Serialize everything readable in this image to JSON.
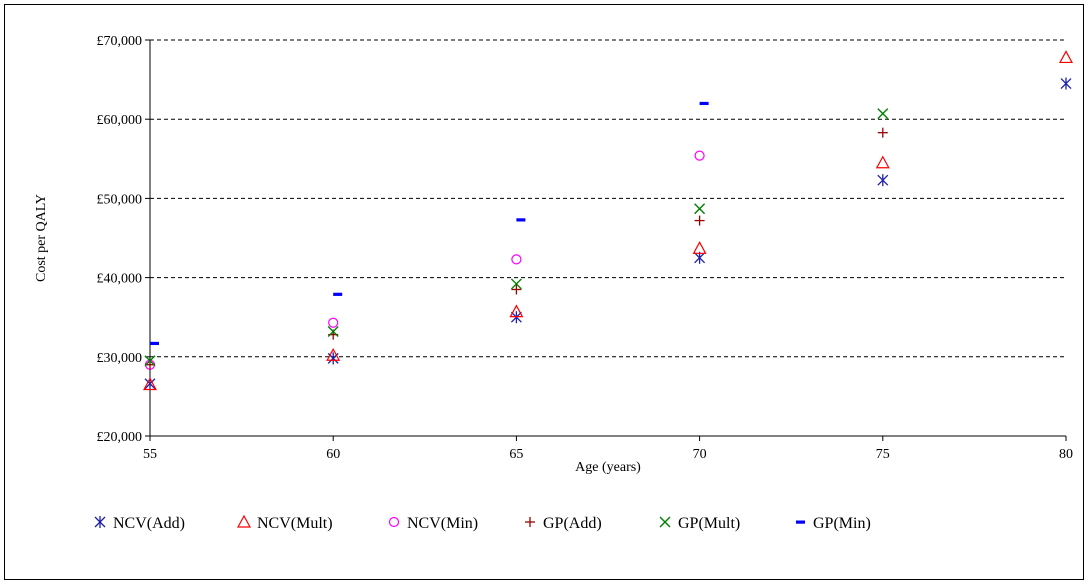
{
  "chart_data": {
    "type": "scatter",
    "title": "",
    "xlabel": "Age (years)",
    "ylabel": "Cost per QALY",
    "xlim": [
      55,
      80
    ],
    "ylim": [
      20000,
      70000
    ],
    "x_ticks": [
      "55",
      "60",
      "65",
      "70",
      "75",
      "80"
    ],
    "y_ticks": [
      "£20,000",
      "£30,000",
      "£40,000",
      "£50,000",
      "£60,000",
      "£70,000"
    ],
    "grid": "horizontal dashed",
    "legend_position": "bottom",
    "series": [
      {
        "name": "NCV(Add)",
        "marker": "asterisk",
        "color": "#1f1fa8",
        "points": [
          [
            55,
            26600
          ],
          [
            60,
            29800
          ],
          [
            65,
            35000
          ],
          [
            70,
            42500
          ],
          [
            75,
            52300
          ],
          [
            80,
            64500
          ]
        ]
      },
      {
        "name": "NCV(Mult)",
        "marker": "triangle",
        "color": "#ff0000",
        "points": [
          [
            55,
            26500
          ],
          [
            60,
            30200
          ],
          [
            65,
            35700
          ],
          [
            70,
            43700
          ],
          [
            75,
            54500
          ],
          [
            80,
            67800
          ]
        ]
      },
      {
        "name": "NCV(Min)",
        "marker": "circle",
        "color": "#ff00ff",
        "points": [
          [
            55,
            29000
          ],
          [
            60,
            34300
          ],
          [
            65,
            42300
          ],
          [
            70,
            55400
          ]
        ]
      },
      {
        "name": "GP(Add)",
        "marker": "plus",
        "color": "#990000",
        "points": [
          [
            55,
            29000
          ],
          [
            60,
            32800
          ],
          [
            65,
            38500
          ],
          [
            70,
            47200
          ],
          [
            75,
            58300
          ]
        ]
      },
      {
        "name": "GP(Mult)",
        "marker": "cross",
        "color": "#008000",
        "points": [
          [
            55,
            29500
          ],
          [
            60,
            33200
          ],
          [
            65,
            39200
          ],
          [
            70,
            48700
          ],
          [
            75,
            60700
          ]
        ]
      },
      {
        "name": "GP(Min)",
        "marker": "dash",
        "color": "#0000ff",
        "points": [
          [
            55,
            31700
          ],
          [
            60,
            37900
          ],
          [
            65,
            47300
          ],
          [
            70,
            62000
          ]
        ]
      }
    ]
  }
}
